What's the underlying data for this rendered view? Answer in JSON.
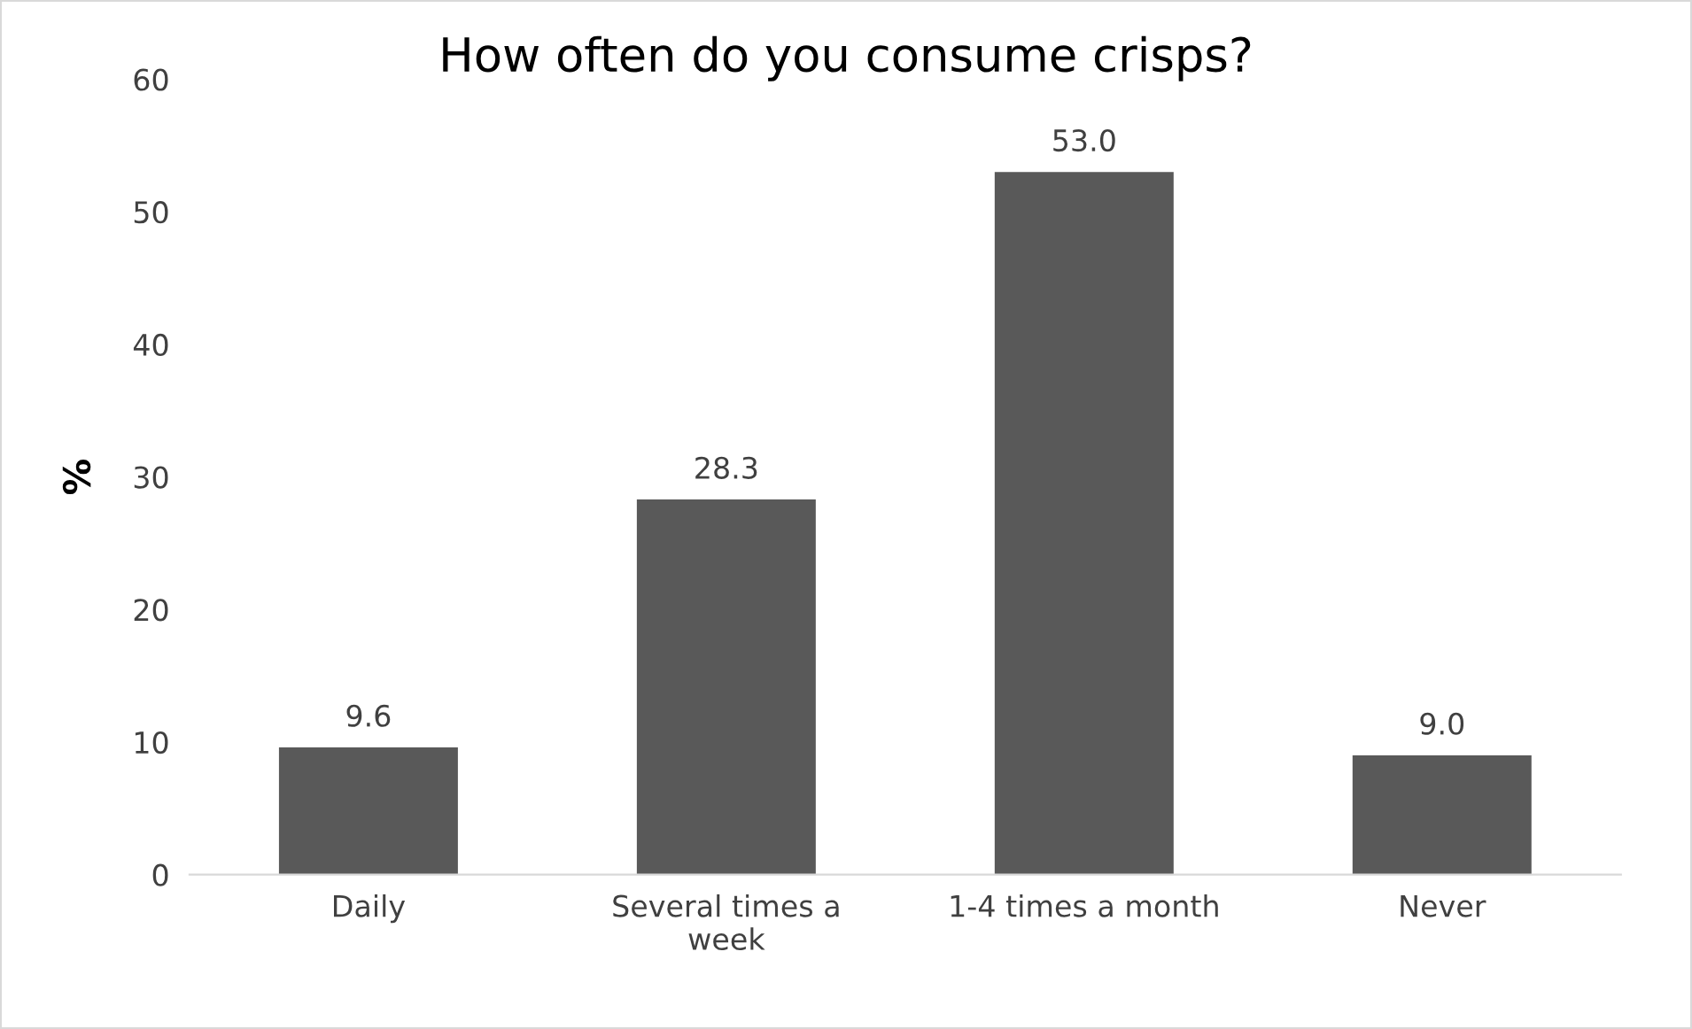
{
  "chart_data": {
    "type": "bar",
    "title": "How often do you consume crisps?",
    "ylabel": "%",
    "categories": [
      "Daily",
      "Several times a week",
      "1-4 times a month",
      "Never"
    ],
    "values": [
      9.6,
      28.3,
      53.0,
      9.0
    ],
    "value_labels": [
      "9.6",
      "28.3",
      "53.0",
      "9.0"
    ],
    "color": "#595959",
    "ylim": [
      0,
      60
    ],
    "yticks": [
      0,
      10,
      20,
      30,
      40,
      50,
      60
    ],
    "grid": false,
    "legend": false
  }
}
